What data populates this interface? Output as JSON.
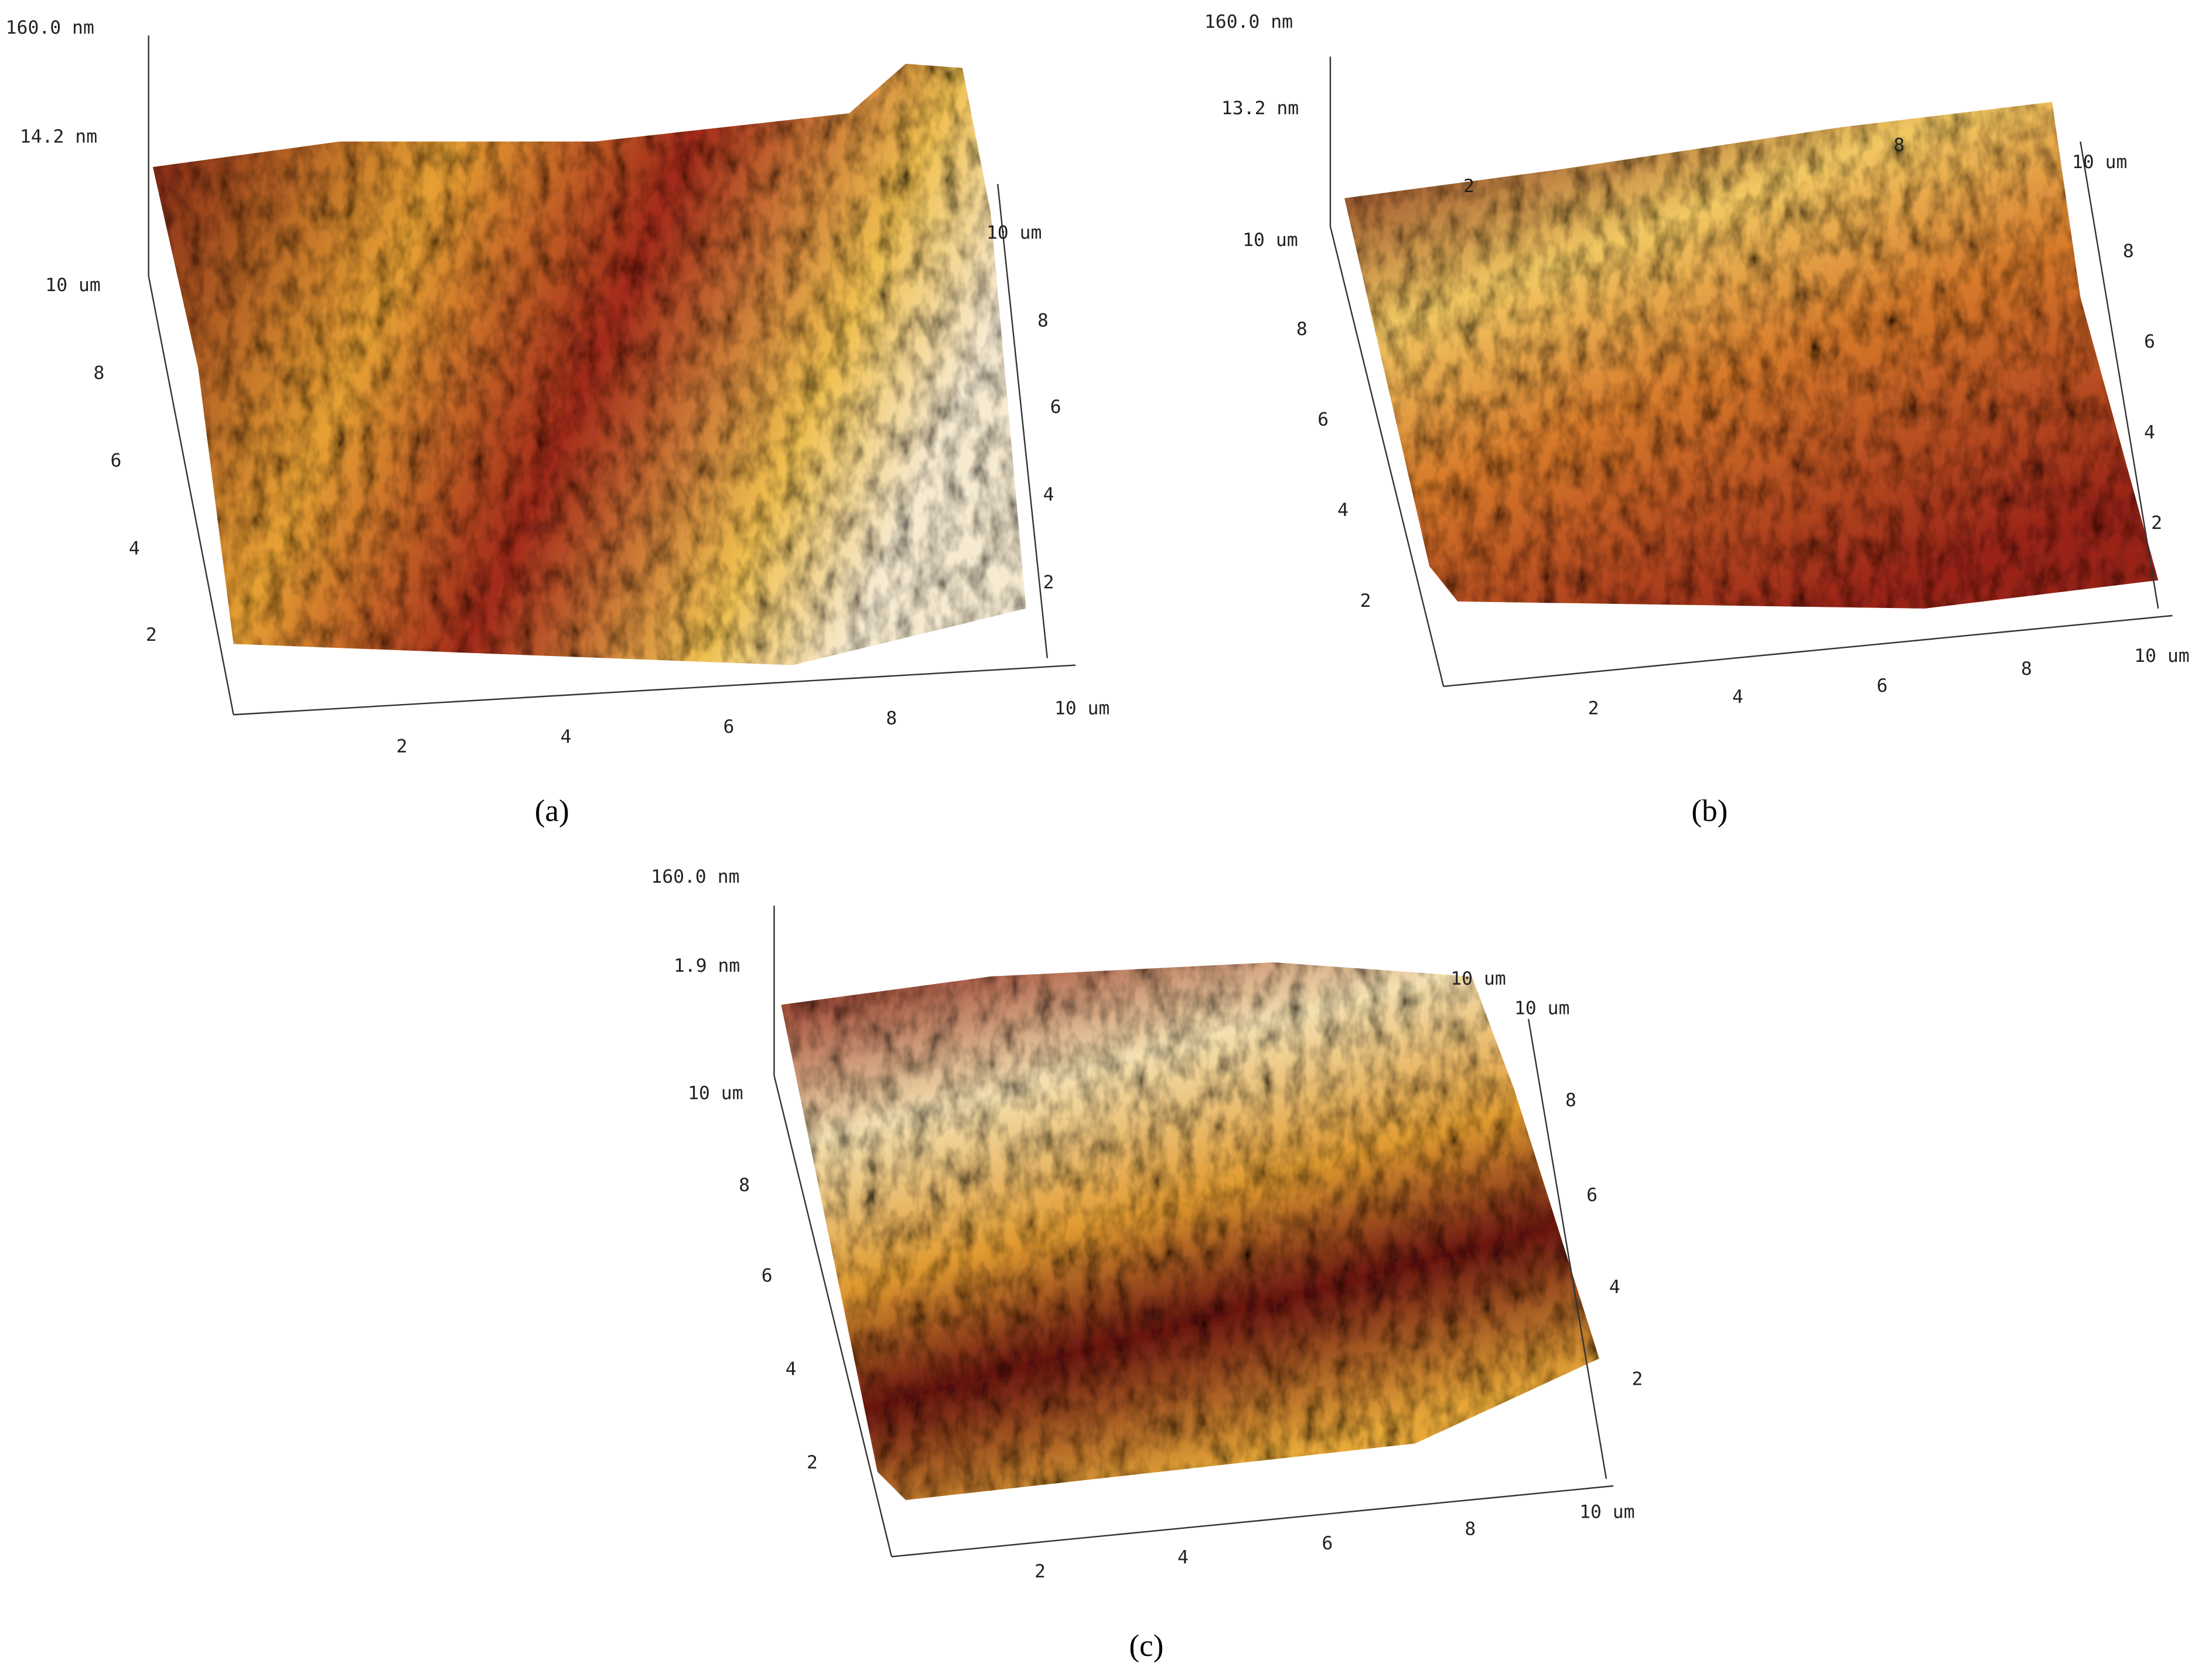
{
  "panels": [
    {
      "caption": "(a)",
      "z_labels": [
        "160.0 nm",
        "14.2 nm"
      ],
      "y_labels": [
        "10 um",
        "8",
        "6",
        "4",
        "2"
      ],
      "x_labels": [
        "2",
        "4",
        "6",
        "8",
        "10 um"
      ],
      "y2_labels": [
        "10 um",
        "8",
        "6",
        "4",
        "2"
      ]
    },
    {
      "caption": "(b)",
      "z_labels": [
        "160.0 nm",
        "13.2 nm"
      ],
      "y_labels": [
        "10 um",
        "8",
        "6",
        "4",
        "2"
      ],
      "x_labels": [
        "2",
        "4",
        "6",
        "8",
        "10 um"
      ],
      "y2_labels": [
        "10 um",
        "8",
        "6",
        "4",
        "2"
      ],
      "back_labels": [
        "2",
        "8"
      ]
    },
    {
      "caption": "(c)",
      "z_labels": [
        "160.0 nm",
        "1.9 nm"
      ],
      "y_labels": [
        "10 um",
        "8",
        "6",
        "4",
        "2"
      ],
      "x_labels": [
        "2",
        "4",
        "6",
        "8",
        "10 um"
      ],
      "y2_labels": [
        "10 um",
        "10 um",
        "8",
        "6",
        "4",
        "2"
      ]
    }
  ]
}
